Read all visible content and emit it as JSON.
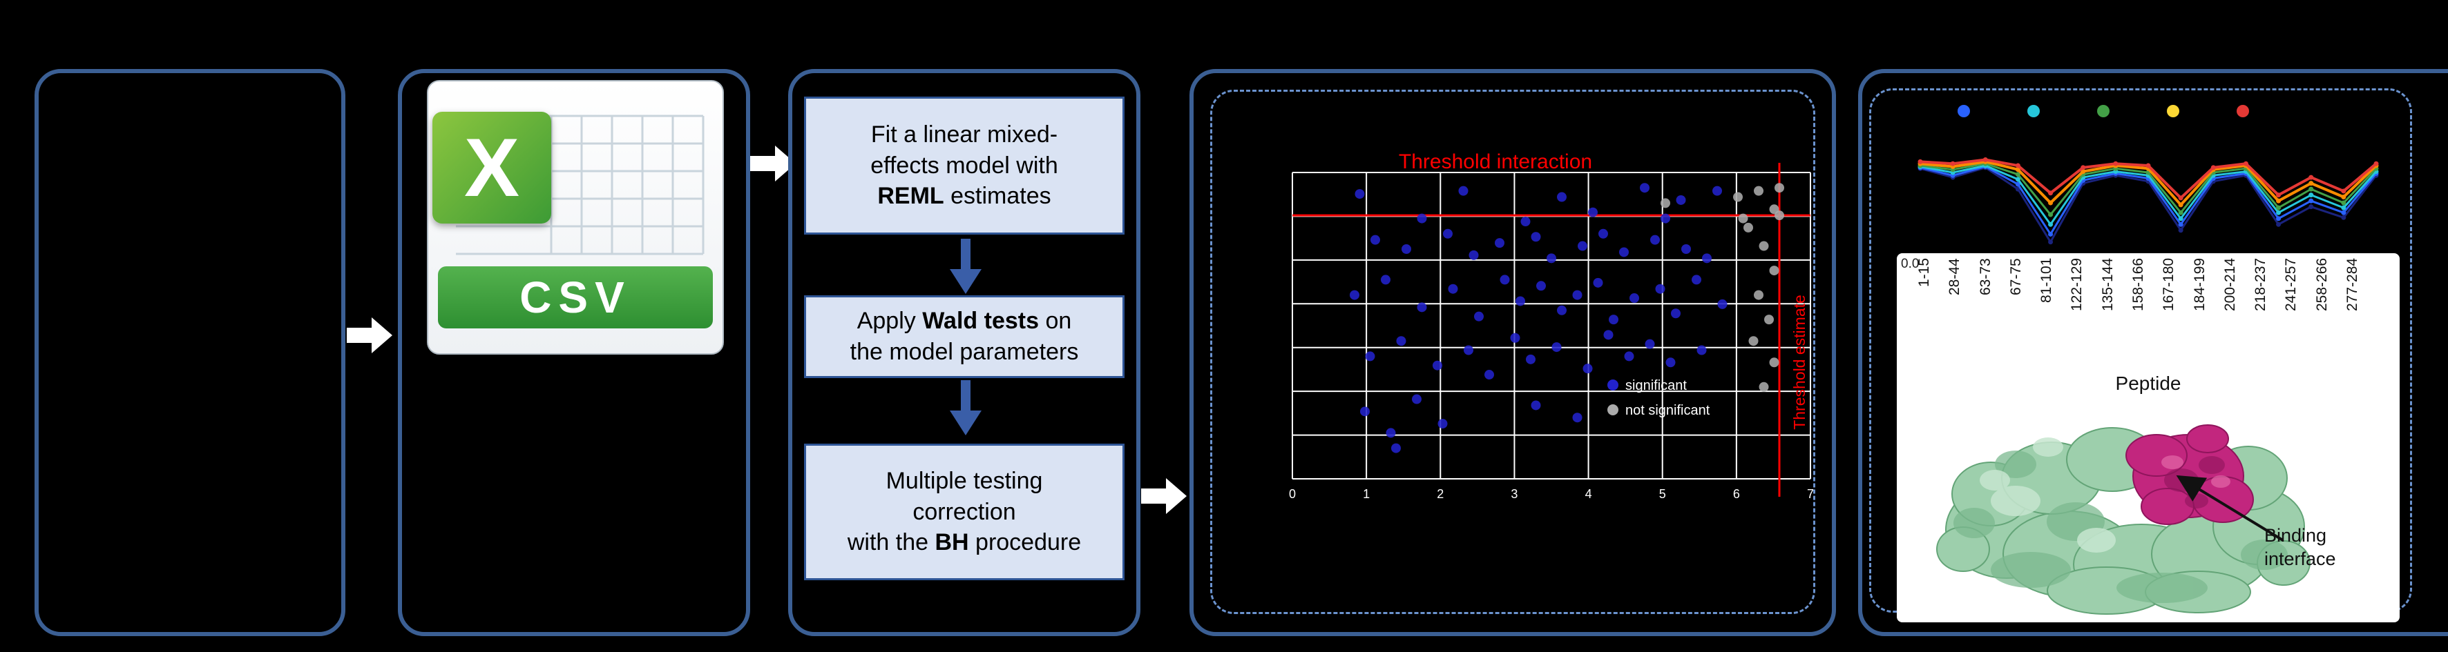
{
  "csv_icon": {
    "logo_letter": "X",
    "label": "CSV"
  },
  "flow": {
    "steps": [
      {
        "l1": "Fit a linear mixed-",
        "l2": "effects model with",
        "b": "REML",
        "l3": " estimates"
      },
      {
        "l1a": "Apply ",
        "b": "Wald tests",
        "l1b": " on",
        "l2": "the model parameters"
      },
      {
        "l1": "Multiple testing",
        "l2": "correction",
        "l3a": "with the ",
        "b": "BH",
        "l3b": " procedure"
      }
    ]
  },
  "protein": {
    "annotation_line1": "Binding",
    "annotation_line2": "interface"
  },
  "chart_data": [
    {
      "type": "scatter",
      "title": "Threshold interaction",
      "x_threshold_label": "Threshold estimate",
      "xlabel": "",
      "ylabel": "",
      "grid": true,
      "x_ticks": [
        "0",
        "1",
        "2",
        "3",
        "4",
        "5",
        "6",
        "7"
      ],
      "threshold_color": "#FF0000",
      "h_threshold_frac": 0.14,
      "v_threshold_frac": 0.94,
      "axis_note": "axis text too small to read in source; point coords are fractions of plot area (x from left, y from top)",
      "series": [
        {
          "name": "significant",
          "color": "#2222CC",
          "points": [
            [
              0.13,
              0.07
            ],
            [
              0.33,
              0.06
            ],
            [
              0.52,
              0.08
            ],
            [
              0.68,
              0.05
            ],
            [
              0.75,
              0.09
            ],
            [
              0.82,
              0.06
            ],
            [
              0.25,
              0.15
            ],
            [
              0.45,
              0.16
            ],
            [
              0.58,
              0.13
            ],
            [
              0.72,
              0.15
            ],
            [
              0.16,
              0.22
            ],
            [
              0.22,
              0.25
            ],
            [
              0.3,
              0.2
            ],
            [
              0.35,
              0.27
            ],
            [
              0.4,
              0.23
            ],
            [
              0.47,
              0.21
            ],
            [
              0.5,
              0.28
            ],
            [
              0.56,
              0.24
            ],
            [
              0.6,
              0.2
            ],
            [
              0.64,
              0.26
            ],
            [
              0.7,
              0.22
            ],
            [
              0.76,
              0.25
            ],
            [
              0.8,
              0.28
            ],
            [
              0.12,
              0.4
            ],
            [
              0.18,
              0.35
            ],
            [
              0.25,
              0.44
            ],
            [
              0.31,
              0.38
            ],
            [
              0.36,
              0.47
            ],
            [
              0.41,
              0.35
            ],
            [
              0.44,
              0.42
            ],
            [
              0.48,
              0.37
            ],
            [
              0.52,
              0.45
            ],
            [
              0.55,
              0.4
            ],
            [
              0.59,
              0.36
            ],
            [
              0.62,
              0.48
            ],
            [
              0.66,
              0.41
            ],
            [
              0.71,
              0.38
            ],
            [
              0.74,
              0.46
            ],
            [
              0.78,
              0.35
            ],
            [
              0.83,
              0.43
            ],
            [
              0.15,
              0.6
            ],
            [
              0.21,
              0.55
            ],
            [
              0.28,
              0.63
            ],
            [
              0.34,
              0.58
            ],
            [
              0.38,
              0.66
            ],
            [
              0.43,
              0.54
            ],
            [
              0.46,
              0.61
            ],
            [
              0.51,
              0.57
            ],
            [
              0.57,
              0.64
            ],
            [
              0.61,
              0.53
            ],
            [
              0.65,
              0.6
            ],
            [
              0.69,
              0.56
            ],
            [
              0.73,
              0.62
            ],
            [
              0.79,
              0.58
            ],
            [
              0.14,
              0.78
            ],
            [
              0.19,
              0.85
            ],
            [
              0.24,
              0.74
            ],
            [
              0.29,
              0.82
            ],
            [
              0.2,
              0.9
            ],
            [
              0.47,
              0.76
            ],
            [
              0.55,
              0.8
            ]
          ]
        },
        {
          "name": "not significant",
          "color": "#ABABAB",
          "points": [
            [
              0.86,
              0.08
            ],
            [
              0.9,
              0.06
            ],
            [
              0.93,
              0.12
            ],
            [
              0.88,
              0.18
            ],
            [
              0.91,
              0.24
            ],
            [
              0.93,
              0.32
            ],
            [
              0.9,
              0.4
            ],
            [
              0.92,
              0.48
            ],
            [
              0.89,
              0.55
            ],
            [
              0.93,
              0.62
            ],
            [
              0.91,
              0.7
            ],
            [
              0.87,
              0.15
            ],
            [
              0.72,
              0.1
            ],
            [
              0.94,
              0.05
            ],
            [
              0.94,
              0.14
            ]
          ]
        }
      ]
    },
    {
      "type": "line",
      "title": "",
      "xlabel": "Peptide",
      "ylim": [
        0.0,
        1.0
      ],
      "ytick_label": "0.0",
      "legend_position": "top",
      "legend_dot_colors": [
        "#2962FF",
        "#26C6DA",
        "#43A047",
        "#FDD835",
        "#E53935"
      ],
      "categories": [
        "1-15",
        "28-44",
        "63-73",
        "67-75",
        "81-101",
        "122-129",
        "135-144",
        "158-166",
        "167-180",
        "184-199",
        "200-214",
        "218-237",
        "241-257",
        "258-266",
        "277-284"
      ],
      "series": [
        {
          "name": "state-navy",
          "color": "#1A237E",
          "width": 3,
          "values": [
            0.85,
            0.76,
            0.86,
            0.64,
            0.1,
            0.7,
            0.78,
            0.72,
            0.22,
            0.72,
            0.78,
            0.28,
            0.46,
            0.35,
            0.78
          ]
        },
        {
          "name": "state-blue",
          "color": "#2962FF",
          "width": 3,
          "values": [
            0.86,
            0.78,
            0.87,
            0.69,
            0.18,
            0.73,
            0.8,
            0.75,
            0.28,
            0.75,
            0.8,
            0.34,
            0.52,
            0.4,
            0.8
          ]
        },
        {
          "name": "state-cyan",
          "color": "#26C6DA",
          "width": 3,
          "values": [
            0.87,
            0.81,
            0.88,
            0.74,
            0.28,
            0.76,
            0.82,
            0.78,
            0.34,
            0.78,
            0.82,
            0.4,
            0.58,
            0.45,
            0.82
          ]
        },
        {
          "name": "state-green",
          "color": "#43A047",
          "width": 3,
          "values": [
            0.88,
            0.84,
            0.9,
            0.79,
            0.38,
            0.79,
            0.85,
            0.81,
            0.4,
            0.81,
            0.85,
            0.45,
            0.64,
            0.5,
            0.85
          ]
        },
        {
          "name": "state-orange",
          "color": "#FB8C00",
          "width": 4,
          "values": [
            0.9,
            0.87,
            0.92,
            0.84,
            0.5,
            0.82,
            0.88,
            0.85,
            0.48,
            0.84,
            0.88,
            0.52,
            0.7,
            0.56,
            0.88
          ]
        },
        {
          "name": "state-red",
          "color": "#E53935",
          "width": 4,
          "values": [
            0.92,
            0.9,
            0.94,
            0.88,
            0.6,
            0.86,
            0.9,
            0.88,
            0.55,
            0.86,
            0.9,
            0.58,
            0.76,
            0.62,
            0.9
          ]
        }
      ]
    }
  ],
  "colors": {
    "panel_border": "#3B5F94",
    "dashed_border": "#6B93CF",
    "flow_box_bg": "#DAE3F3",
    "flow_box_border": "#2E5596",
    "flow_arrow_blue": "#3A5EA8",
    "csv_banner_green": "#2E8F31",
    "excel_logo_green": "#3D9B35",
    "threshold_red": "#FF0000",
    "protein_surface_green": "#9DCFAC",
    "binding_site_magenta": "#C2267E"
  }
}
